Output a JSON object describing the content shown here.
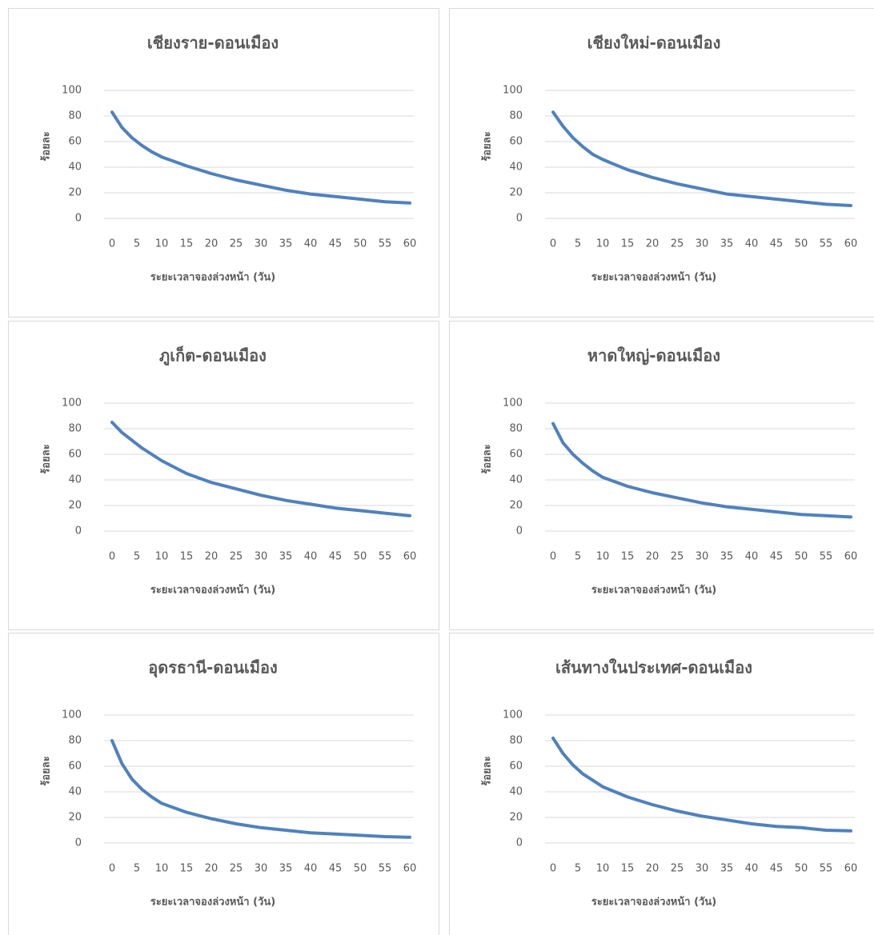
{
  "chart_data": [
    {
      "type": "line",
      "title": "เชียงราย-ดอนเมือง",
      "xlabel": "ระยะเวลาจองล่วงหน้า (วัน)",
      "ylabel": "ร้อยละ",
      "color": "#4f81bd",
      "x": [
        0,
        2,
        4,
        6,
        8,
        10,
        15,
        20,
        25,
        30,
        35,
        40,
        45,
        50,
        55,
        60
      ],
      "values": [
        83,
        71,
        63,
        57,
        52,
        48,
        41,
        35,
        30,
        26,
        22,
        19,
        17,
        15,
        13,
        12
      ],
      "xlim": [
        0,
        60
      ],
      "xticks": [
        0,
        5,
        10,
        15,
        20,
        25,
        30,
        35,
        40,
        45,
        50,
        55,
        60
      ],
      "ylim": [
        0,
        100
      ],
      "yticks": [
        0,
        20,
        40,
        60,
        80,
        100
      ],
      "grid": true
    },
    {
      "type": "line",
      "title": "เชียงใหม่-ดอนเมือง",
      "xlabel": "ระยะเวลาจองล่วงหน้า (วัน)",
      "ylabel": "ร้อยละ",
      "color": "#4f81bd",
      "x": [
        0,
        2,
        4,
        6,
        8,
        10,
        15,
        20,
        25,
        30,
        35,
        40,
        45,
        50,
        55,
        60
      ],
      "values": [
        83,
        72,
        63,
        56,
        50,
        46,
        38,
        32,
        27,
        23,
        19,
        17,
        15,
        13,
        11,
        10
      ],
      "xlim": [
        0,
        60
      ],
      "xticks": [
        0,
        5,
        10,
        15,
        20,
        25,
        30,
        35,
        40,
        45,
        50,
        55,
        60
      ],
      "ylim": [
        0,
        100
      ],
      "yticks": [
        0,
        20,
        40,
        60,
        80,
        100
      ],
      "grid": true
    },
    {
      "type": "line",
      "title": "ภูเก็ต-ดอนเมือง",
      "xlabel": "ระยะเวลาจองล่วงหน้า (วัน)",
      "ylabel": "ร้อยละ",
      "color": "#4f81bd",
      "x": [
        0,
        2,
        4,
        6,
        8,
        10,
        15,
        20,
        25,
        30,
        35,
        40,
        45,
        50,
        55,
        60
      ],
      "values": [
        85,
        77,
        71,
        65,
        60,
        55,
        45,
        38,
        33,
        28,
        24,
        21,
        18,
        16,
        14,
        12
      ],
      "xlim": [
        0,
        60
      ],
      "xticks": [
        0,
        5,
        10,
        15,
        20,
        25,
        30,
        35,
        40,
        45,
        50,
        55,
        60
      ],
      "ylim": [
        0,
        100
      ],
      "yticks": [
        0,
        20,
        40,
        60,
        80,
        100
      ],
      "grid": true
    },
    {
      "type": "line",
      "title": "หาดใหญ่-ดอนเมือง",
      "xlabel": "ระยะเวลาจองล่วงหน้า (วัน)",
      "ylabel": "ร้อยละ",
      "color": "#4f81bd",
      "x": [
        0,
        2,
        4,
        6,
        8,
        10,
        15,
        20,
        25,
        30,
        35,
        40,
        45,
        50,
        55,
        60
      ],
      "values": [
        84,
        69,
        60,
        53,
        47,
        42,
        35,
        30,
        26,
        22,
        19,
        17,
        15,
        13,
        12,
        11
      ],
      "xlim": [
        0,
        60
      ],
      "xticks": [
        0,
        5,
        10,
        15,
        20,
        25,
        30,
        35,
        40,
        45,
        50,
        55,
        60
      ],
      "ylim": [
        0,
        100
      ],
      "yticks": [
        0,
        20,
        40,
        60,
        80,
        100
      ],
      "grid": true
    },
    {
      "type": "line",
      "title": "อุดรธานี-ดอนเมือง",
      "xlabel": "ระยะเวลาจองล่วงหน้า (วัน)",
      "ylabel": "ร้อยละ",
      "color": "#4f81bd",
      "x": [
        0,
        2,
        4,
        6,
        8,
        10,
        15,
        20,
        25,
        30,
        35,
        40,
        45,
        50,
        55,
        60
      ],
      "values": [
        80,
        62,
        50,
        42,
        36,
        31,
        24,
        19,
        15,
        12,
        10,
        8,
        7,
        6,
        5,
        4.5
      ],
      "xlim": [
        0,
        60
      ],
      "xticks": [
        0,
        5,
        10,
        15,
        20,
        25,
        30,
        35,
        40,
        45,
        50,
        55,
        60
      ],
      "ylim": [
        0,
        100
      ],
      "yticks": [
        0,
        20,
        40,
        60,
        80,
        100
      ],
      "grid": true
    },
    {
      "type": "line",
      "title": "เส้นทางในประเทศ-ดอนเมือง",
      "xlabel": "ระยะเวลาจองล่วงหน้า (วัน)",
      "ylabel": "ร้อยละ",
      "color": "#4f81bd",
      "x": [
        0,
        2,
        4,
        6,
        8,
        10,
        15,
        20,
        25,
        30,
        35,
        40,
        45,
        50,
        55,
        60
      ],
      "values": [
        82,
        70,
        61,
        54,
        49,
        44,
        36,
        30,
        25,
        21,
        18,
        15,
        13,
        12,
        10,
        9.5
      ],
      "xlim": [
        0,
        60
      ],
      "xticks": [
        0,
        5,
        10,
        15,
        20,
        25,
        30,
        35,
        40,
        45,
        50,
        55,
        60
      ],
      "ylim": [
        0,
        100
      ],
      "yticks": [
        0,
        20,
        40,
        60,
        80,
        100
      ],
      "grid": true
    }
  ]
}
